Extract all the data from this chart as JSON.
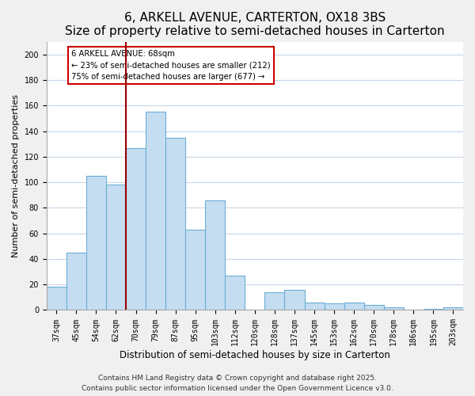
{
  "title": "6, ARKELL AVENUE, CARTERTON, OX18 3BS",
  "subtitle": "Size of property relative to semi-detached houses in Carterton",
  "xlabel": "Distribution of semi-detached houses by size in Carterton",
  "ylabel": "Number of semi-detached properties",
  "categories": [
    "37sqm",
    "45sqm",
    "54sqm",
    "62sqm",
    "70sqm",
    "79sqm",
    "87sqm",
    "95sqm",
    "103sqm",
    "112sqm",
    "120sqm",
    "128sqm",
    "137sqm",
    "145sqm",
    "153sqm",
    "162sqm",
    "170sqm",
    "178sqm",
    "186sqm",
    "195sqm",
    "203sqm"
  ],
  "values": [
    18,
    45,
    105,
    98,
    127,
    155,
    135,
    63,
    86,
    27,
    0,
    14,
    16,
    6,
    5,
    6,
    4,
    2,
    0,
    1,
    2
  ],
  "bar_color": "#c5ddf0",
  "bar_edgecolor": "#6aaed6",
  "vline_color": "#990000",
  "annotation_line1": "6 ARKELL AVENUE: 68sqm",
  "annotation_line2": "← 23% of semi-detached houses are smaller (212)",
  "annotation_line3": "75% of semi-detached houses are larger (677) →",
  "ylim": [
    0,
    210
  ],
  "yticks": [
    0,
    20,
    40,
    60,
    80,
    100,
    120,
    140,
    160,
    180,
    200
  ],
  "footer1": "Contains HM Land Registry data © Crown copyright and database right 2025.",
  "footer2": "Contains public sector information licensed under the Open Government Licence v3.0.",
  "bg_color": "#f0f0f0",
  "plot_bg_color": "#ffffff",
  "title_fontsize": 11,
  "subtitle_fontsize": 9.5,
  "xlabel_fontsize": 8.5,
  "ylabel_fontsize": 8,
  "tick_fontsize": 7,
  "footer_fontsize": 6.5,
  "grid_color": "#c8d8e8"
}
